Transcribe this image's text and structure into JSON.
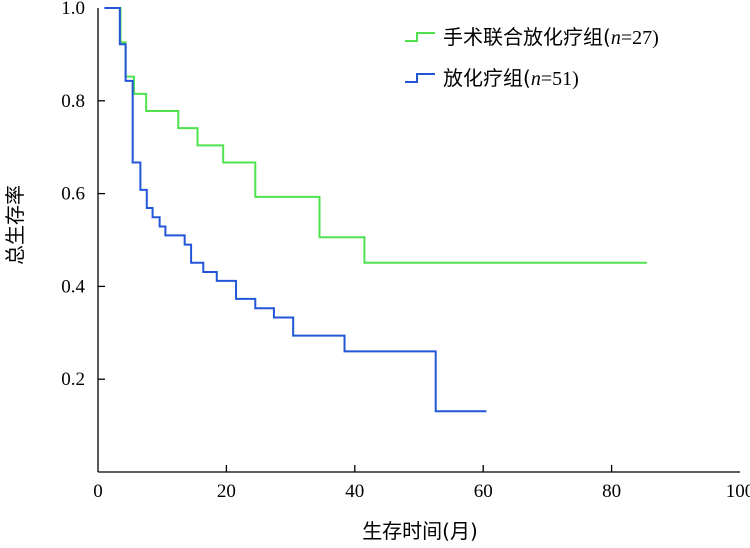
{
  "chart_data": {
    "type": "line",
    "step": true,
    "xlabel": "生存时间(月)",
    "ylabel": "总生存率",
    "xlim": [
      0,
      100
    ],
    "ylim": [
      0,
      1.0
    ],
    "xticks": [
      "0",
      "20",
      "40",
      "60",
      "80",
      "100"
    ],
    "yticks": [
      "0.2",
      "0.4",
      "0.6",
      "0.8",
      "1.0"
    ],
    "grid": false,
    "legend_position": "top-right",
    "series": [
      {
        "name": "手术联合放化疗组(n=27)",
        "name_parts": [
          "手术联合放化疗组(",
          "n",
          "=27)"
        ],
        "color": "#4ee34e",
        "points": [
          [
            1,
            1.0
          ],
          [
            3.5,
            0.926
          ],
          [
            4.3,
            0.852
          ],
          [
            5.6,
            0.815
          ],
          [
            7.5,
            0.778
          ],
          [
            12.5,
            0.741
          ],
          [
            15.5,
            0.704
          ],
          [
            19.5,
            0.667
          ],
          [
            24.5,
            0.593
          ],
          [
            34.5,
            0.506
          ],
          [
            41.5,
            0.451
          ],
          [
            85.5,
            0.451
          ]
        ]
      },
      {
        "name": "放化疗组(n=51)",
        "name_parts": [
          "放化疗组(",
          "n",
          "=51)"
        ],
        "color": "#2255d8",
        "points": [
          [
            1,
            1.0
          ],
          [
            3.4,
            0.922
          ],
          [
            4.3,
            0.843
          ],
          [
            5.4,
            0.667
          ],
          [
            6.6,
            0.608
          ],
          [
            7.6,
            0.569
          ],
          [
            8.5,
            0.549
          ],
          [
            9.6,
            0.529
          ],
          [
            10.5,
            0.51
          ],
          [
            13.5,
            0.49
          ],
          [
            14.5,
            0.451
          ],
          [
            16.4,
            0.431
          ],
          [
            18.5,
            0.412
          ],
          [
            21.5,
            0.373
          ],
          [
            24.5,
            0.353
          ],
          [
            27.4,
            0.333
          ],
          [
            30.4,
            0.294
          ],
          [
            38.4,
            0.26
          ],
          [
            52.6,
            0.131
          ],
          [
            60.5,
            0.131
          ]
        ]
      }
    ]
  }
}
